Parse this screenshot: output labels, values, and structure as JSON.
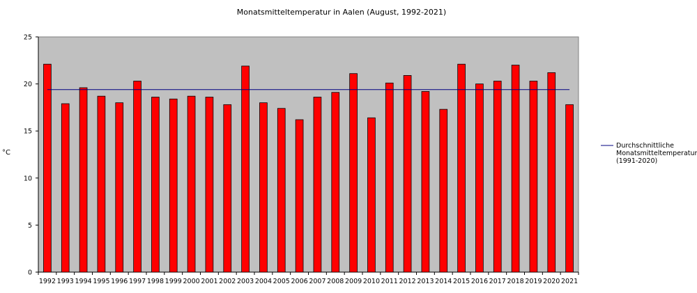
{
  "chart_data": {
    "type": "bar",
    "title": "Monatsmitteltemperatur in Aalen (August, 1992-2021)",
    "xlabel": "",
    "ylabel": "°C",
    "ylim": [
      0,
      25
    ],
    "yticks": [
      0,
      5,
      10,
      15,
      20,
      25
    ],
    "grid": false,
    "legend_position": "right",
    "categories": [
      "1992",
      "1993",
      "1994",
      "1995",
      "1996",
      "1997",
      "1998",
      "1999",
      "2000",
      "2001",
      "2002",
      "2003",
      "2004",
      "2005",
      "2006",
      "2007",
      "2008",
      "2009",
      "2010",
      "2011",
      "2012",
      "2013",
      "2014",
      "2015",
      "2016",
      "2017",
      "2018",
      "2019",
      "2020",
      "2021"
    ],
    "values": [
      22.1,
      17.9,
      19.6,
      18.7,
      18.0,
      20.3,
      18.6,
      18.4,
      18.7,
      18.6,
      17.8,
      21.9,
      18.0,
      17.4,
      16.2,
      18.6,
      19.1,
      21.1,
      16.4,
      20.1,
      20.9,
      19.2,
      17.3,
      22.1,
      20.0,
      20.3,
      22.0,
      20.3,
      21.2,
      17.8
    ],
    "reference_line": {
      "value": 19.4,
      "legend_lines": [
        "Durchschnittliche",
        "Monatsmitteltemperatur",
        "(1991-2020)"
      ]
    },
    "colors": {
      "bar_fill": "#ff0000",
      "bar_stroke": "#000000",
      "plot_background": "#c0c0c0",
      "reference_line": "#000080"
    }
  }
}
